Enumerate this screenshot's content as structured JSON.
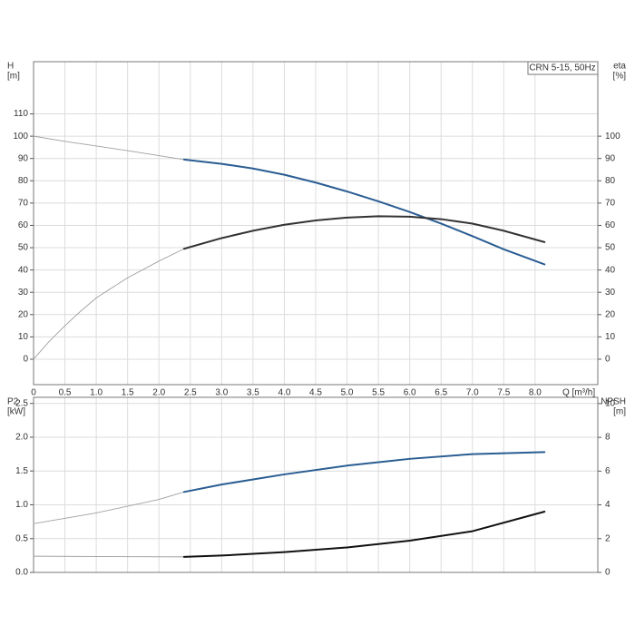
{
  "chart_data": [
    {
      "type": "line",
      "ylabel": "H",
      "yunit": "[m]",
      "y2label": "eta",
      "y2unit": "[%]",
      "xlabel": "Q [m³/h]",
      "annotation": "CRN 5-15, 50Hz",
      "xlim": [
        0,
        9.0
      ],
      "ylim": [
        -11.4,
        133.4
      ],
      "y2lim": [
        -11.4,
        133.4
      ],
      "xticks": [
        0,
        0.5,
        {
          "value": 1,
          "label": "1.0"
        },
        1.5,
        {
          "value": 2,
          "label": "2.0"
        },
        2.5,
        {
          "value": 3,
          "label": "3.0"
        },
        3.5,
        {
          "value": 4,
          "label": "4.0"
        },
        4.5,
        {
          "value": 5,
          "label": "5.0"
        },
        5.5,
        {
          "value": 6,
          "label": "6.0"
        },
        6.5,
        {
          "value": 7,
          "label": "7.0"
        },
        7.5,
        {
          "value": 8,
          "label": "8.0"
        }
      ],
      "yticks": [
        0,
        10,
        20,
        30,
        40,
        50,
        60,
        70,
        80,
        90,
        100,
        110
      ],
      "y2ticks": [
        0,
        10,
        20,
        30,
        40,
        50,
        60,
        70,
        80,
        90,
        100
      ],
      "series": [
        {
          "color": "#a0a0a0",
          "axis": "y",
          "x": [
            0,
            0.5,
            1,
            1.5,
            2,
            2.4
          ],
          "values": [
            100,
            97.7,
            95.6,
            93.5,
            91.3,
            89.5
          ]
        },
        {
          "color": "#2a5d92",
          "axis": "y",
          "x": [
            2.4,
            3,
            3.5,
            4,
            4.5,
            5,
            5.5,
            6,
            6.5,
            7,
            7.5,
            8.15
          ],
          "values": [
            89.5,
            87.6,
            85.5,
            82.7,
            79.2,
            75.2,
            70.8,
            66,
            60.8,
            55.2,
            49.3,
            42.5
          ]
        },
        {
          "color": "#a0a0a0",
          "axis": "y2",
          "x": [
            0,
            0.25,
            0.5,
            0.75,
            1,
            1.5,
            2,
            2.4
          ],
          "values": [
            0,
            8,
            15,
            21.5,
            27.5,
            36.5,
            44,
            49.5
          ]
        },
        {
          "color": "#333333",
          "axis": "y2",
          "x": [
            2.4,
            3,
            3.5,
            4,
            4.5,
            5,
            5.5,
            6,
            6.5,
            7,
            7.5,
            8.15
          ],
          "values": [
            49.5,
            54.3,
            57.6,
            60.3,
            62.2,
            63.5,
            64.1,
            63.9,
            62.8,
            60.8,
            57.6,
            52.5
          ]
        }
      ]
    },
    {
      "type": "line",
      "ylabel": "P2",
      "yunit": "[kW]",
      "y2label": "NPSH",
      "y2unit": "[m]",
      "xlim": [
        0,
        9.0
      ],
      "ylim": [
        0,
        2.59
      ],
      "y2lim": [
        0,
        10.37
      ],
      "yticks": [
        {
          "value": 0,
          "label": "0.0"
        },
        0.5,
        {
          "value": 1,
          "label": "1.0"
        },
        1.5,
        {
          "value": 2,
          "label": "2.0"
        },
        2.5
      ],
      "y2ticks": [
        0,
        2,
        4,
        6,
        8,
        10
      ],
      "series": [
        {
          "color": "#a0a0a0",
          "axis": "y",
          "x": [
            0,
            1,
            2,
            2.4
          ],
          "values": [
            0.72,
            0.88,
            1.08,
            1.19
          ]
        },
        {
          "color": "#2a5d92",
          "axis": "y",
          "x": [
            2.4,
            3,
            4,
            5,
            6,
            7,
            8.15
          ],
          "values": [
            1.19,
            1.3,
            1.45,
            1.58,
            1.68,
            1.75,
            1.78
          ]
        },
        {
          "color": "#a0a0a0",
          "axis": "y2",
          "x": [
            0,
            2.4
          ],
          "values": [
            0.96,
            0.92
          ]
        },
        {
          "color": "#111111",
          "axis": "y2",
          "x": [
            2.4,
            3,
            4,
            5,
            6,
            7,
            8.15
          ],
          "values": [
            0.92,
            1.0,
            1.2,
            1.48,
            1.88,
            2.44,
            3.6
          ]
        }
      ]
    }
  ]
}
